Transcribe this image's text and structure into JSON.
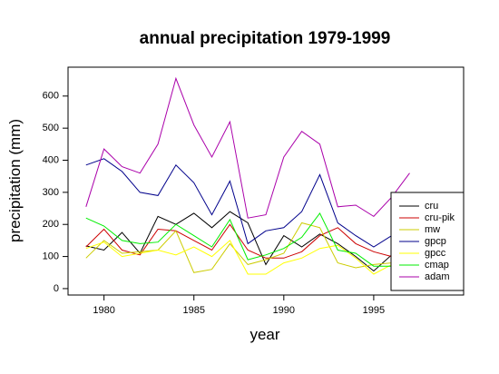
{
  "chart_data": {
    "type": "line",
    "title": "annual precipitation 1979-1999",
    "xlabel": "year",
    "ylabel": "precipitation (mm)",
    "xlim": [
      1978,
      2000
    ],
    "ylim": [
      -20,
      690
    ],
    "xticks": [
      1980,
      1985,
      1990,
      1995
    ],
    "yticks": [
      0,
      100,
      200,
      300,
      400,
      500,
      600
    ],
    "grid": false,
    "legend_position": "bottom-right",
    "x": [
      1979,
      1980,
      1981,
      1982,
      1983,
      1984,
      1985,
      1986,
      1987,
      1988,
      1989,
      1990,
      1991,
      1992,
      1993,
      1994,
      1995,
      1996,
      1997
    ],
    "series": [
      {
        "name": "cru",
        "color": "#000000",
        "values": [
          133,
          120,
          175,
          110,
          225,
          200,
          235,
          190,
          240,
          205,
          75,
          165,
          130,
          170,
          140,
          100,
          55,
          105,
          80
        ]
      },
      {
        "name": "cru-pik",
        "color": "#cc0000",
        "values": [
          130,
          185,
          120,
          105,
          185,
          180,
          150,
          120,
          200,
          120,
          95,
          95,
          115,
          165,
          190,
          140,
          115,
          100,
          90
        ]
      },
      {
        "name": "mw",
        "color": "#cccc00",
        "values": [
          95,
          150,
          110,
          115,
          120,
          180,
          50,
          60,
          140,
          75,
          90,
          110,
          205,
          190,
          80,
          65,
          75,
          80,
          90
        ]
      },
      {
        "name": "gpcp",
        "color": "#00008b",
        "values": [
          385,
          405,
          365,
          300,
          290,
          385,
          330,
          230,
          335,
          140,
          180,
          190,
          240,
          355,
          205,
          165,
          130,
          165,
          180
        ]
      },
      {
        "name": "gpcc",
        "color": "#ffff00",
        "values": [
          125,
          145,
          100,
          110,
          120,
          105,
          130,
          100,
          150,
          45,
          45,
          80,
          95,
          125,
          135,
          95,
          45,
          75,
          95
        ]
      },
      {
        "name": "cmap",
        "color": "#00ee00",
        "values": [
          220,
          195,
          150,
          140,
          145,
          200,
          165,
          130,
          215,
          90,
          105,
          125,
          160,
          235,
          120,
          110,
          70,
          70,
          90
        ]
      },
      {
        "name": "adam",
        "color": "#aa00aa",
        "values": [
          255,
          435,
          380,
          360,
          450,
          655,
          510,
          410,
          520,
          220,
          230,
          410,
          490,
          450,
          255,
          260,
          225,
          285,
          360
        ]
      }
    ]
  }
}
